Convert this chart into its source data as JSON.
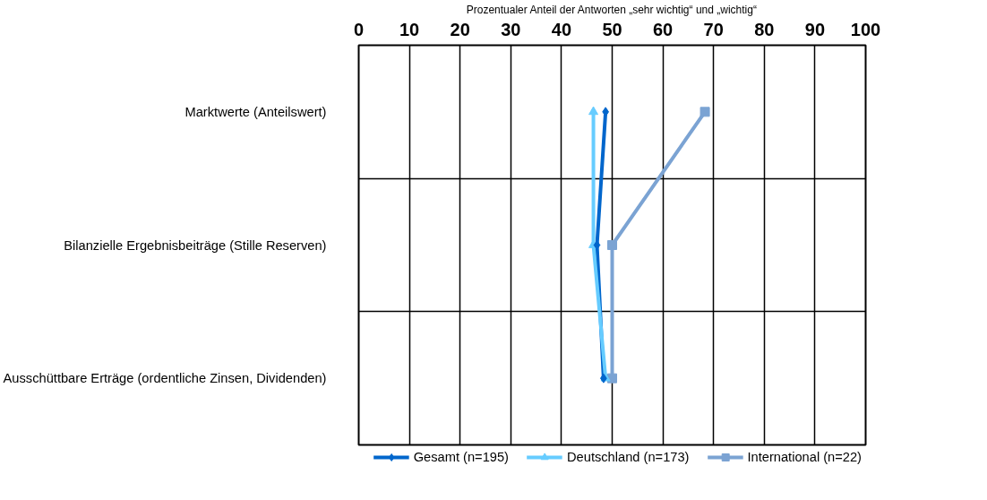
{
  "chart_data": {
    "type": "line",
    "orientation": "horizontal",
    "xlabel": "Prozentualer Anteil der Antworten „sehr wichtig“ und „wichtig“",
    "categories": [
      "Marktwerte (Anteilswert)",
      "Bilanzielle Ergebnisbeiträge (Stille Reserven)",
      "Ausschüttbare Erträge (ordentliche Zinsen, Dividenden)"
    ],
    "xlim": [
      0,
      100
    ],
    "xticks": [
      0,
      10,
      20,
      30,
      40,
      50,
      60,
      70,
      80,
      90,
      100
    ],
    "grid": true,
    "legend": "bottom",
    "series": [
      {
        "name": "Gesamt (n=195)",
        "color": "#0066cc",
        "marker": "diamond",
        "values": [
          48.7,
          47.0,
          48.3
        ]
      },
      {
        "name": "Deutschland (n=173)",
        "color": "#66ccff",
        "marker": "triangle",
        "values": [
          46.3,
          46.3,
          48.7
        ]
      },
      {
        "name": "International (n=22)",
        "color": "#7ba3d3",
        "marker": "square",
        "values": [
          68.3,
          50.0,
          50.0
        ]
      }
    ]
  }
}
